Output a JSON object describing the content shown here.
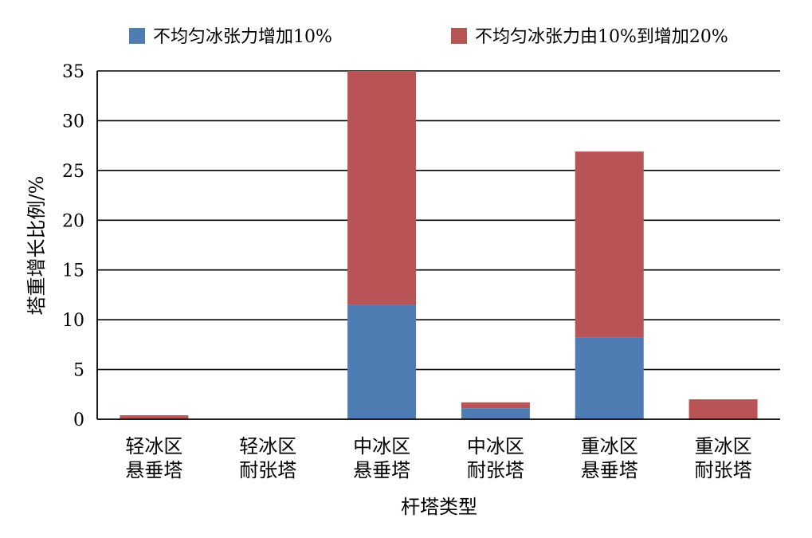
{
  "chart_data": {
    "type": "bar",
    "stacked": true,
    "title": "",
    "xlabel": "杆塔类型",
    "ylabel": "塔重增长比例/%",
    "ylim": [
      0,
      35
    ],
    "yticks": [
      0,
      5,
      10,
      15,
      20,
      25,
      30,
      35
    ],
    "grid": true,
    "legend_position": "top",
    "categories": [
      [
        "轻冰区",
        "悬垂塔"
      ],
      [
        "轻冰区",
        "耐张塔"
      ],
      [
        "中冰区",
        "悬垂塔"
      ],
      [
        "中冰区",
        "耐张塔"
      ],
      [
        "重冰区",
        "悬垂塔"
      ],
      [
        "重冰区",
        "耐张塔"
      ]
    ],
    "series": [
      {
        "name": "不均匀冰张力增加10%",
        "color": "#4F7DB3",
        "values": [
          0,
          0,
          11.5,
          1.1,
          8.2,
          0
        ]
      },
      {
        "name": "不均匀冰张力由10%到增加20%",
        "color": "#B85456",
        "values": [
          0.4,
          0,
          23.5,
          0.6,
          18.7,
          2.0
        ]
      }
    ]
  }
}
